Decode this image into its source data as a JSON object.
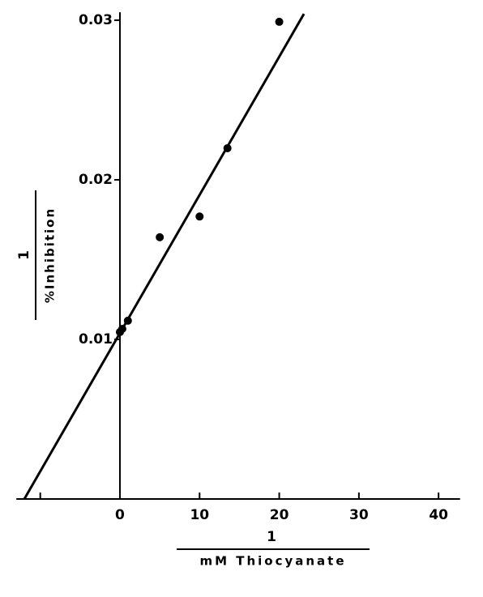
{
  "chart_data": {
    "type": "scatter",
    "x_label": {
      "numerator": "1",
      "denominator": "mM Thiocyanate"
    },
    "y_label": {
      "numerator": "1",
      "denominator": "%Inhibition"
    },
    "series": [
      {
        "x": [
          0,
          0.3,
          1,
          5,
          10,
          13.5,
          20
        ],
        "values": [
          0.01046,
          0.01066,
          0.01117,
          0.0164,
          0.0177,
          0.02198,
          0.0299
        ],
        "color": "#000000"
      }
    ],
    "fit_line": {
      "x": [
        -12,
        23.1
      ],
      "values": [
        0,
        0.0304
      ],
      "color": "#000000"
    },
    "xlim": [
      -13,
      42.7
    ],
    "ylim": [
      0,
      0.0305
    ],
    "xticks": [
      {
        "value": -10,
        "label": null
      },
      0,
      10,
      20,
      30,
      40
    ],
    "yticks": [
      0.01,
      0.02,
      0.03
    ]
  }
}
